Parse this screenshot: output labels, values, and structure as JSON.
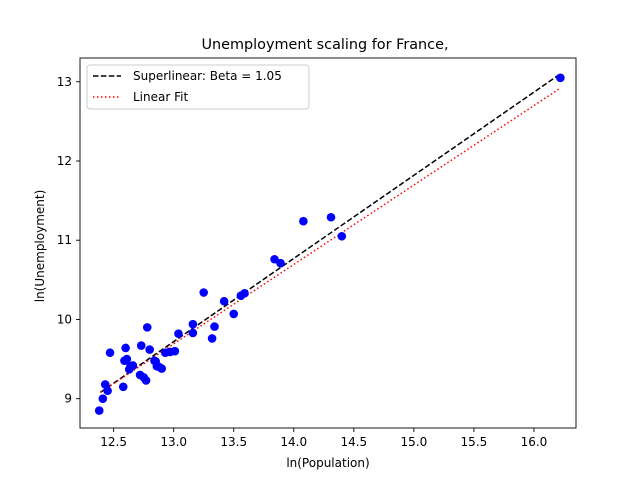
{
  "chart_data": {
    "type": "scatter",
    "title": "Unemployment scaling for France,",
    "xlabel": "ln(Population)",
    "ylabel": "ln(Unemployment)",
    "xlim": [
      12.22,
      16.35
    ],
    "ylim": [
      8.63,
      13.3
    ],
    "xticks": [
      12.5,
      13.0,
      13.5,
      14.0,
      14.5,
      15.0,
      15.5,
      16.0
    ],
    "xtick_labels": [
      "12.5",
      "13.0",
      "13.5",
      "14.0",
      "14.5",
      "15.0",
      "15.5",
      "16.0"
    ],
    "yticks": [
      9,
      10,
      11,
      12,
      13
    ],
    "ytick_labels": [
      "9",
      "10",
      "11",
      "12",
      "13"
    ],
    "grid": false,
    "legend_position": "top-left",
    "series": [
      {
        "name": "Superlinear: Beta = 1.05",
        "kind": "line",
        "style": "dashed",
        "color": "#000000",
        "x": [
          12.39,
          16.22
        ],
        "y": [
          9.08,
          13.1
        ]
      },
      {
        "name": "Linear Fit",
        "kind": "line",
        "style": "dotted",
        "color": "#ff0000",
        "x": [
          12.39,
          16.22
        ],
        "y": [
          9.08,
          12.92
        ]
      },
      {
        "kind": "scatter",
        "color": "#0000ff",
        "x": [
          12.38,
          12.41,
          12.43,
          12.45,
          12.47,
          12.58,
          12.59,
          12.6,
          12.61,
          12.63,
          12.64,
          12.66,
          12.72,
          12.73,
          12.75,
          12.77,
          12.78,
          12.8,
          12.84,
          12.85,
          12.86,
          12.88,
          12.9,
          12.93,
          12.97,
          13.01,
          13.04,
          13.16,
          13.16,
          13.25,
          13.32,
          13.34,
          13.42,
          13.5,
          13.56,
          13.59,
          13.84,
          13.89,
          14.08,
          14.31,
          14.4,
          16.22
        ],
        "y": [
          8.85,
          9.0,
          9.18,
          9.1,
          9.58,
          9.15,
          9.48,
          9.64,
          9.5,
          9.37,
          9.41,
          9.42,
          9.3,
          9.67,
          9.27,
          9.23,
          9.9,
          9.62,
          9.48,
          9.47,
          9.41,
          9.4,
          9.38,
          9.58,
          9.59,
          9.6,
          9.82,
          9.83,
          9.94,
          10.34,
          9.76,
          9.91,
          10.23,
          10.07,
          10.3,
          10.33,
          10.76,
          10.71,
          11.24,
          11.29,
          11.05,
          13.05
        ]
      }
    ]
  }
}
